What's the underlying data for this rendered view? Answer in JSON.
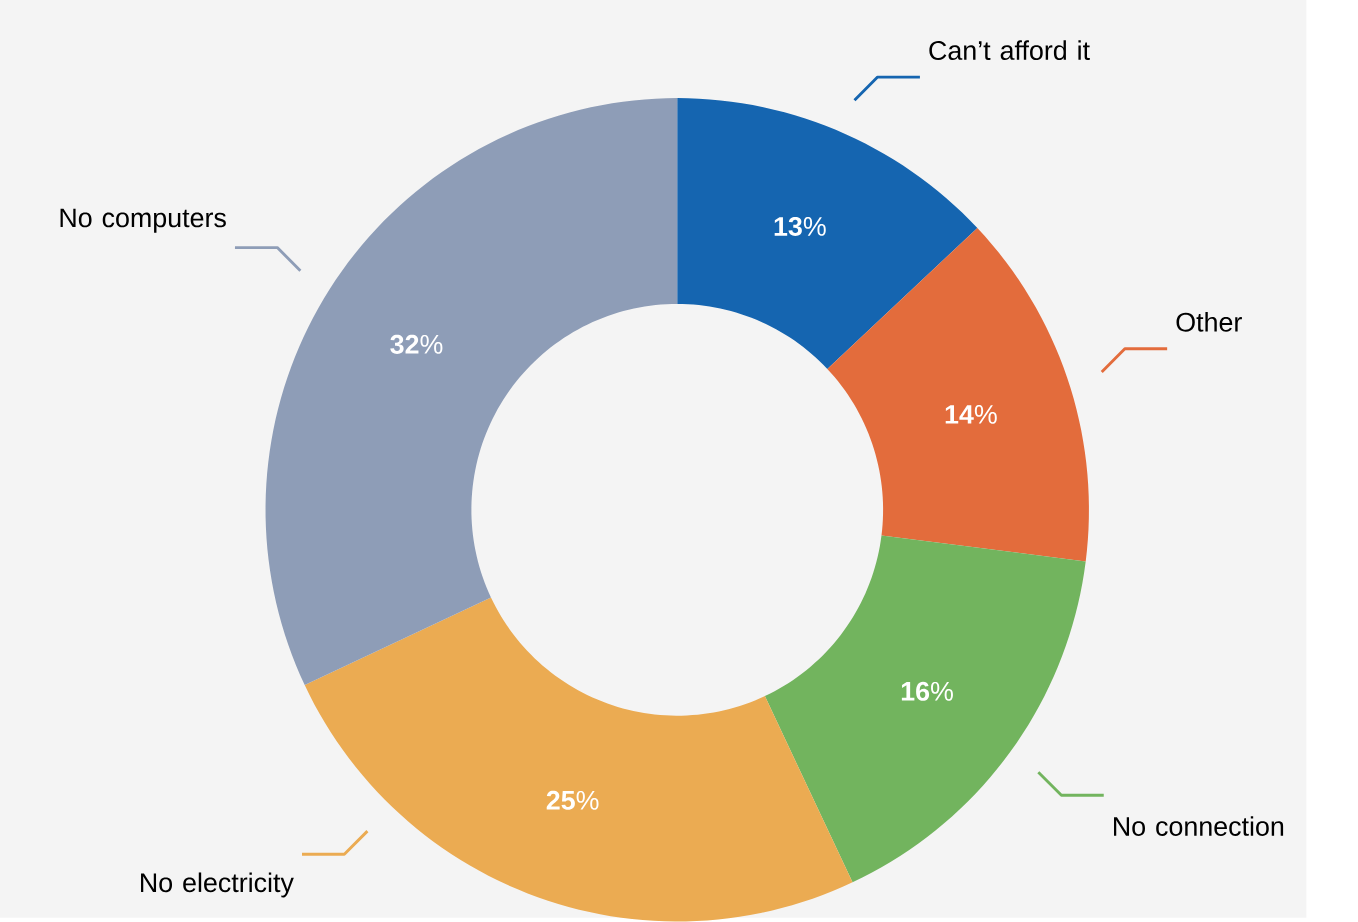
{
  "chart_data": {
    "type": "donut",
    "categories": [
      "Can’t afford it",
      "Other",
      "No connection",
      "No electricity",
      "No computers"
    ],
    "values": [
      13,
      14,
      16,
      25,
      32
    ],
    "colors": [
      "#1565b0",
      "#e36c3c",
      "#72b45e",
      "#ebab52",
      "#8e9db7"
    ],
    "value_labels": [
      "**13**%",
      "**14**%",
      "**16**%",
      "**25**%",
      "**32**%"
    ]
  }
}
